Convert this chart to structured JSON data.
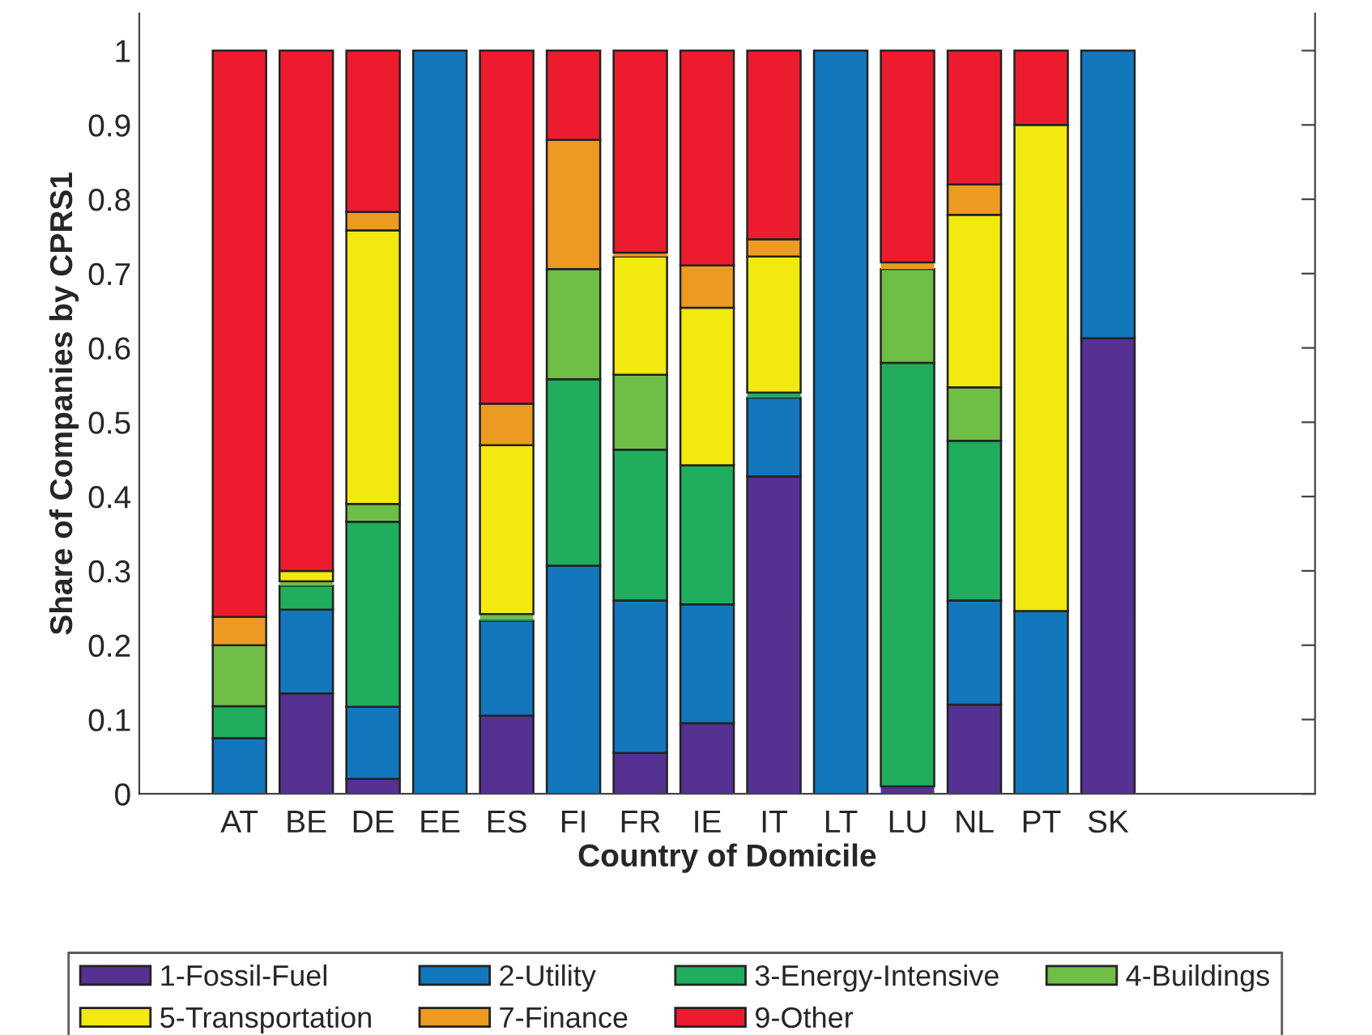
{
  "chart_data": {
    "type": "bar",
    "stacked": true,
    "xlabel": "Country of Domicile",
    "ylabel": "Share of Companies by CPRS1",
    "categories": [
      "AT",
      "BE",
      "DE",
      "EE",
      "ES",
      "FI",
      "FR",
      "IE",
      "IT",
      "LT",
      "LU",
      "NL",
      "PT",
      "SK"
    ],
    "series": [
      {
        "name": "1-Fossil-Fuel",
        "color": "#553192",
        "values": [
          0,
          0.135,
          0.02,
          0,
          0.105,
          0,
          0.055,
          0.095,
          0.427,
          0,
          0.01,
          0.12,
          0,
          0.613
        ]
      },
      {
        "name": "2-Utility",
        "color": "#1277bc",
        "values": [
          0.075,
          0.113,
          0.097,
          1,
          0.128,
          0.307,
          0.205,
          0.16,
          0.106,
          1,
          0,
          0.14,
          0.246,
          0.387
        ]
      },
      {
        "name": "3-Energy-Intensive",
        "color": "#20ad5e",
        "values": [
          0.043,
          0.032,
          0.249,
          0,
          0.003,
          0.251,
          0.203,
          0.187,
          0.007,
          0,
          0.57,
          0.215,
          0,
          0
        ]
      },
      {
        "name": "4-Buildings",
        "color": "#6fbe46",
        "values": [
          0.082,
          0.006,
          0.024,
          0,
          0.006,
          0.148,
          0.101,
          0,
          0,
          0,
          0.126,
          0.072,
          0,
          0
        ]
      },
      {
        "name": "5-Transportation",
        "color": "#f2e90f",
        "values": [
          0,
          0.014,
          0.368,
          0,
          0.227,
          0,
          0.159,
          0.212,
          0.183,
          0,
          0,
          0.232,
          0.654,
          0
        ]
      },
      {
        "name": "7-Finance",
        "color": "#ec9a22",
        "values": [
          0.038,
          0,
          0.025,
          0,
          0.056,
          0.174,
          0.005,
          0.057,
          0.023,
          0,
          0.009,
          0.041,
          0,
          0
        ]
      },
      {
        "name": "9-Other",
        "color": "#ec1c2e",
        "values": [
          0.762,
          0.7,
          0.217,
          0,
          0.475,
          0.12,
          0.272,
          0.289,
          0.254,
          0,
          0.285,
          0.18,
          0.1,
          0
        ]
      }
    ],
    "ylim": [
      0,
      1.05
    ],
    "yticks": [
      0,
      0.1,
      0.2,
      0.3,
      0.4,
      0.5,
      0.6,
      0.7,
      0.8,
      0.9,
      1
    ],
    "legend": "bottom",
    "grid": false
  }
}
